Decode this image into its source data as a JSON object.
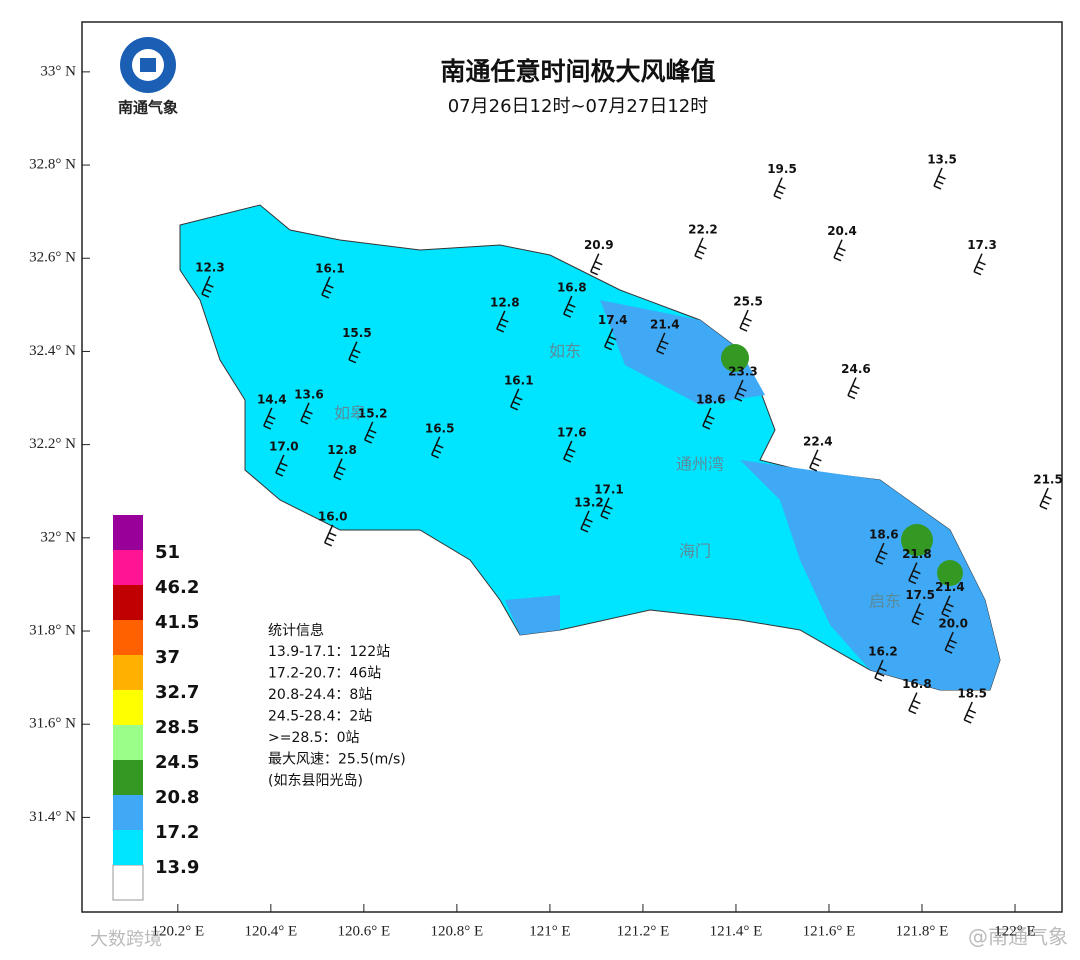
{
  "map": {
    "title": "南通任意时间极大风峰值",
    "subtitle": "07月26日12时~07月27日12时",
    "logo_text": "南通气象",
    "xlim": [
      119.994,
      122.101
    ],
    "ylim": [
      31.197,
      33.107
    ],
    "xticks": [
      {
        "value": 120.2,
        "label": "120.2° E"
      },
      {
        "value": 120.4,
        "label": "120.4° E"
      },
      {
        "value": 120.6,
        "label": "120.6° E"
      },
      {
        "value": 120.8,
        "label": "120.8° E"
      },
      {
        "value": 121,
        "label": "121° E"
      },
      {
        "value": 121.2,
        "label": "121.2° E"
      },
      {
        "value": 121.4,
        "label": "121.4° E"
      },
      {
        "value": 121.6,
        "label": "121.6° E"
      },
      {
        "value": 121.8,
        "label": "121.8° E"
      },
      {
        "value": 122,
        "label": "122° E"
      }
    ],
    "yticks": [
      {
        "value": 33,
        "label": "33° N"
      },
      {
        "value": 32.8,
        "label": "32.8° N"
      },
      {
        "value": 32.6,
        "label": "32.6° N"
      },
      {
        "value": 32.4,
        "label": "32.4° N"
      },
      {
        "value": 32.2,
        "label": "32.2° N"
      },
      {
        "value": 32,
        "label": "32° N"
      },
      {
        "value": 31.8,
        "label": "31.8° N"
      },
      {
        "value": 31.6,
        "label": "31.6° N"
      },
      {
        "value": 31.4,
        "label": "31.4° N"
      }
    ],
    "legend": {
      "colors": [
        "#ffffff",
        "#00e5ff",
        "#3fa9f5",
        "#339922",
        "#99ff88",
        "#ffff00",
        "#ffb000",
        "#ff6000",
        "#c00000",
        "#ff1493",
        "#990099"
      ],
      "thresholds": [
        13.9,
        17.2,
        20.8,
        24.5,
        28.5,
        32.7,
        37,
        41.5,
        46.2,
        51
      ]
    },
    "stations": [
      {
        "label": "19.5",
        "lon": 121.499,
        "lat": 32.79
      },
      {
        "label": "13.5",
        "lon": 121.843,
        "lat": 32.811
      },
      {
        "label": "22.2",
        "lon": 121.329,
        "lat": 32.661
      },
      {
        "label": "20.4",
        "lon": 121.628,
        "lat": 32.657
      },
      {
        "label": "20.9",
        "lon": 121.105,
        "lat": 32.627
      },
      {
        "label": "17.3",
        "lon": 121.929,
        "lat": 32.627
      },
      {
        "label": "25.5",
        "lon": 121.426,
        "lat": 32.506
      },
      {
        "label": "24.6",
        "lon": 121.658,
        "lat": 32.361
      },
      {
        "label": "22.4",
        "lon": 121.576,
        "lat": 32.206
      },
      {
        "label": "21.5",
        "lon": 122.071,
        "lat": 32.124
      },
      {
        "label": "23.3",
        "lon": 121.415,
        "lat": 32.356
      },
      {
        "label": "21.4",
        "lon": 121.247,
        "lat": 32.457
      },
      {
        "label": "21.8",
        "lon": 121.789,
        "lat": 31.964
      },
      {
        "label": "21.4",
        "lon": 121.86,
        "lat": 31.893
      },
      {
        "label": "18.5",
        "lon": 121.908,
        "lat": 31.665
      },
      {
        "label": "16.8",
        "lon": 121.789,
        "lat": 31.685
      },
      {
        "label": "20.0",
        "lon": 121.867,
        "lat": 31.815
      },
      {
        "label": "17.5",
        "lon": 121.796,
        "lat": 31.876
      },
      {
        "label": "16.2",
        "lon": 121.716,
        "lat": 31.755
      },
      {
        "label": "18.6",
        "lon": 121.718,
        "lat": 32.006
      },
      {
        "label": "13.2",
        "lon": 121.084,
        "lat": 32.075
      },
      {
        "label": "13.6",
        "lon": 120.482,
        "lat": 32.307
      },
      {
        "label": "12.8",
        "lon": 120.553,
        "lat": 32.187
      },
      {
        "label": "14.4",
        "lon": 120.402,
        "lat": 32.296
      },
      {
        "label": "15.2",
        "lon": 120.619,
        "lat": 32.266
      },
      {
        "label": "16.1",
        "lon": 120.933,
        "lat": 32.337
      },
      {
        "label": "12.8",
        "lon": 120.903,
        "lat": 32.504
      },
      {
        "label": "16.8",
        "lon": 121.047,
        "lat": 32.536
      },
      {
        "label": "17.4",
        "lon": 121.135,
        "lat": 32.466
      },
      {
        "label": "18.6",
        "lon": 121.346,
        "lat": 32.296
      },
      {
        "label": "17.6",
        "lon": 121.047,
        "lat": 32.225
      },
      {
        "label": "17.1",
        "lon": 121.127,
        "lat": 32.103
      },
      {
        "label": "16.0",
        "lon": 120.533,
        "lat": 32.045
      },
      {
        "label": "16.1",
        "lon": 120.527,
        "lat": 32.577
      },
      {
        "label": "15.5",
        "lon": 120.585,
        "lat": 32.438
      },
      {
        "label": "16.5",
        "lon": 120.763,
        "lat": 32.234
      },
      {
        "label": "12.3",
        "lon": 120.269,
        "lat": 32.579
      },
      {
        "label": "17.0",
        "lon": 120.428,
        "lat": 32.195
      }
    ],
    "region_labels": [
      "如皋",
      "如东",
      "通州湾",
      "海门",
      "启东"
    ],
    "stats": {
      "title": "统计信息",
      "lines": [
        "13.9-17.1：122站",
        "17.2-20.7：46站",
        "20.8-24.4：8站",
        "24.5-28.4：2站",
        ">=28.5：0站",
        "最大风速：25.5(m/s)",
        "(如东县阳光岛)"
      ]
    },
    "watermarks": [
      "大数跨境",
      "@南通气象"
    ]
  }
}
